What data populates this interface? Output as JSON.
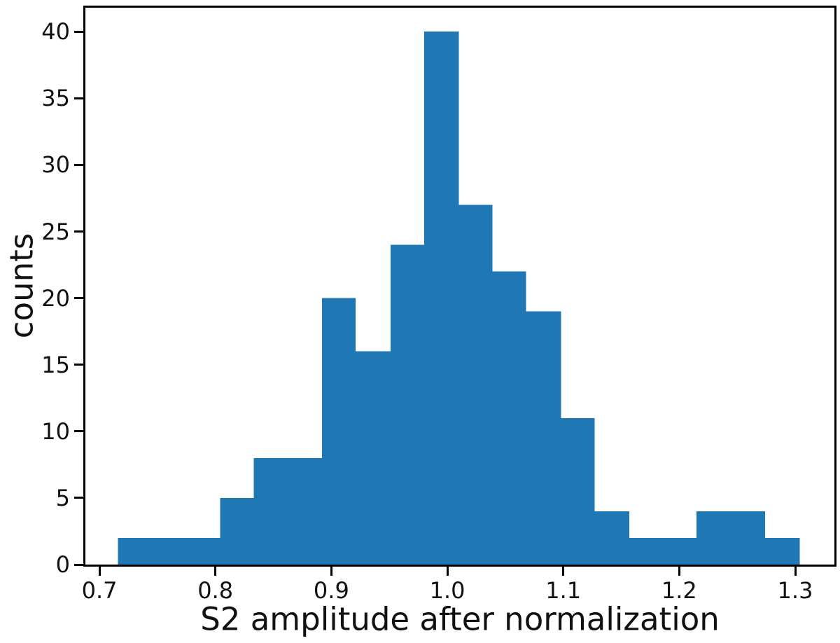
{
  "chart_data": {
    "type": "bar",
    "subtype": "histogram",
    "title": "",
    "xlabel": "S2 amplitude after normalization",
    "ylabel": "counts",
    "bar_color": "#1f77b4",
    "axis_color": "#000000",
    "text_color": "#111111",
    "background_color": "#ffffff",
    "grid": false,
    "legend": null,
    "bin_edges": [
      0.716,
      0.745,
      0.775,
      0.804,
      0.833,
      0.863,
      0.892,
      0.921,
      0.951,
      0.98,
      1.01,
      1.039,
      1.068,
      1.098,
      1.127,
      1.157,
      1.186,
      1.215,
      1.245,
      1.274,
      1.304
    ],
    "counts": [
      2,
      2,
      2,
      5,
      8,
      8,
      20,
      16,
      24,
      40,
      27,
      22,
      19,
      11,
      4,
      2,
      2,
      4,
      4,
      2
    ],
    "xticks": [
      0.7,
      0.8,
      0.9,
      1.0,
      1.1,
      1.2,
      1.3
    ],
    "xtick_labels": [
      "0.7",
      "0.8",
      "0.9",
      "1.0",
      "1.1",
      "1.2",
      "1.3"
    ],
    "yticks": [
      0,
      5,
      10,
      15,
      20,
      25,
      30,
      35,
      40
    ],
    "ytick_labels": [
      "0",
      "5",
      "10",
      "15",
      "20",
      "25",
      "30",
      "35",
      "40"
    ],
    "xlim": [
      0.6879,
      1.3338
    ],
    "ylim": [
      0,
      41.8
    ]
  }
}
